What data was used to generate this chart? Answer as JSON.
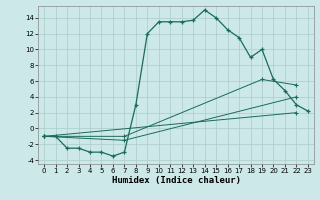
{
  "xlabel": "Humidex (Indice chaleur)",
  "bg_color": "#cce8e8",
  "line_color": "#1a6b5a",
  "grid_color": "#aacccc",
  "xlim": [
    -0.5,
    23.5
  ],
  "ylim": [
    -4.5,
    15.5
  ],
  "xticks": [
    0,
    1,
    2,
    3,
    4,
    5,
    6,
    7,
    8,
    9,
    10,
    11,
    12,
    13,
    14,
    15,
    16,
    17,
    18,
    19,
    20,
    21,
    22,
    23
  ],
  "yticks": [
    -4,
    -2,
    0,
    2,
    4,
    6,
    8,
    10,
    12,
    14
  ],
  "line1_x": [
    0,
    1,
    2,
    3,
    4,
    5,
    6,
    7,
    8,
    9,
    10,
    11,
    12,
    13,
    14,
    15,
    16,
    17,
    18,
    19,
    20,
    21,
    22,
    23
  ],
  "line1_y": [
    -1,
    -1,
    -2.5,
    -2.5,
    -3,
    -3,
    -3.5,
    -3,
    3,
    12,
    13.5,
    13.5,
    13.5,
    13.7,
    15.0,
    14.0,
    12.5,
    11.5,
    9.0,
    10.0,
    6.2,
    4.8,
    3.0,
    2.2
  ],
  "line2_x": [
    0,
    7,
    19,
    22
  ],
  "line2_y": [
    -1,
    -1,
    6.2,
    5.5
  ],
  "line3_x": [
    0,
    7,
    22
  ],
  "line3_y": [
    -1,
    -1.5,
    4.0
  ],
  "line4_x": [
    0,
    22
  ],
  "line4_y": [
    -1,
    2.0
  ]
}
